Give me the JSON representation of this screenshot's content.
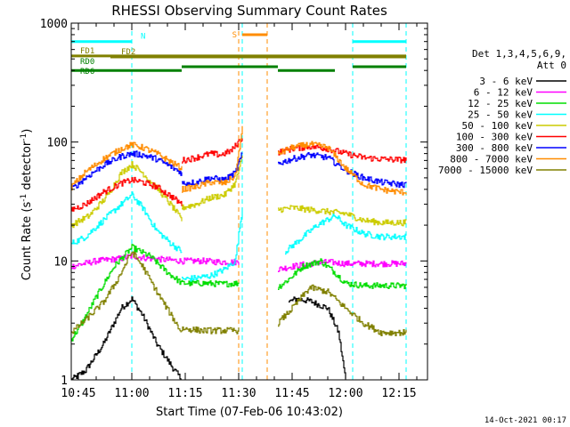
{
  "chart_data": {
    "type": "line",
    "title": "RHESSI Observing Summary Count Rates",
    "xlabel": "Start Time (07-Feb-06 10:43:02)",
    "ylabel": "Count Rate (s⁻¹ detector⁻¹)",
    "ylabel_main": "Count Rate (s",
    "ylabel_sup1": "-1",
    "ylabel_mid": " detector",
    "ylabel_sup2": "-1",
    "ylabel_end": ")",
    "yscale": "log",
    "ylim": [
      1,
      1000
    ],
    "xlim": [
      "10:43",
      "12:23"
    ],
    "y_ticks": [
      "1",
      "10",
      "100",
      "1000"
    ],
    "x_ticks": [
      "10:45",
      "11:00",
      "11:15",
      "11:30",
      "11:45",
      "12:00",
      "12:15"
    ],
    "grid": false,
    "legend": {
      "placement": "right",
      "header": [
        "Det 1,3,4,5,6,9,",
        "Att 0"
      ],
      "entries": [
        {
          "label": "3 - 6 keV",
          "color": "#000000"
        },
        {
          "label": "6 - 12 keV",
          "color": "#ff00ff"
        },
        {
          "label": "12 - 25 keV",
          "color": "#00dd00"
        },
        {
          "label": "25 - 50 keV",
          "color": "#00ffff"
        },
        {
          "label": "50 - 100 keV",
          "color": "#cccc00"
        },
        {
          "label": "100 - 300 keV",
          "color": "#ff0000"
        },
        {
          "label": "300 - 800 keV",
          "color": "#0000ff"
        },
        {
          "label": "800 - 7000 keV",
          "color": "#ff8c00"
        },
        {
          "label": "7000 - 15000 keV",
          "color": "#808000"
        }
      ]
    },
    "series": [
      {
        "name": "3 - 6 keV",
        "color": "#000000",
        "noisy": true,
        "segments": [
          {
            "x": [
              "10:43",
              "10:47",
              "10:52",
              "10:57",
              "11:00",
              "11:03",
              "11:07",
              "11:12",
              "11:14"
            ],
            "y": [
              1,
              1.2,
              2,
              4,
              4.8,
              3.5,
              2,
              1.2,
              1
            ]
          },
          {
            "x": [
              "11:44",
              "11:46",
              "11:50",
              "11:55",
              "11:58",
              "12:00"
            ],
            "y": [
              4.5,
              4.8,
              4.6,
              4,
              2.5,
              1
            ]
          }
        ]
      },
      {
        "name": "6 - 12 keV",
        "color": "#ff00ff",
        "noisy": true,
        "segments": [
          {
            "x": [
              "10:43",
              "10:50",
              "10:57",
              "11:00",
              "11:05",
              "11:14",
              "11:20",
              "11:25",
              "11:30"
            ],
            "y": [
              9,
              10,
              10.5,
              11,
              10.5,
              10,
              10,
              9.8,
              9.8
            ]
          },
          {
            "x": [
              "11:41",
              "11:45",
              "11:50",
              "11:55",
              "12:00",
              "12:05",
              "12:10",
              "12:15",
              "12:17"
            ],
            "y": [
              8.5,
              9,
              9.5,
              9.8,
              9.5,
              9.5,
              9.5,
              9.5,
              9.5
            ]
          }
        ]
      },
      {
        "name": "12 - 25 keV",
        "color": "#00dd00",
        "noisy": true,
        "segments": [
          {
            "x": [
              "10:43",
              "10:46",
              "10:50",
              "10:55",
              "11:00",
              "11:05",
              "11:10",
              "11:14",
              "11:20",
              "11:25",
              "11:30"
            ],
            "y": [
              2.2,
              3,
              5,
              9,
              13,
              11,
              8,
              6.5,
              6.5,
              6.4,
              6.5
            ]
          },
          {
            "x": [
              "11:41",
              "11:44",
              "11:48",
              "11:53",
              "11:57",
              "12:00",
              "12:05",
              "12:10",
              "12:15",
              "12:17"
            ],
            "y": [
              6,
              7,
              9,
              10,
              8,
              6.5,
              6.2,
              6.2,
              6.2,
              6.2
            ]
          }
        ]
      },
      {
        "name": "25 - 50 keV",
        "color": "#00ffff",
        "noisy": true,
        "segments": [
          {
            "x": [
              "10:43",
              "10:47",
              "10:52",
              "10:57",
              "11:00",
              "11:03",
              "11:07",
              "11:11",
              "11:14"
            ],
            "y": [
              14,
              16,
              22,
              30,
              36,
              28,
              18,
              14,
              12
            ]
          },
          {
            "x": [
              "11:14",
              "11:18",
              "11:22",
              "11:26",
              "11:29",
              "11:31"
            ],
            "y": [
              7,
              7.2,
              7.5,
              8.5,
              10,
              28
            ]
          },
          {
            "x": [
              "11:43",
              "11:47",
              "11:52",
              "11:57",
              "12:00",
              "12:05",
              "12:10",
              "12:15",
              "12:17"
            ],
            "y": [
              12,
              15,
              20,
              24,
              20,
              17,
              16,
              16,
              16
            ]
          }
        ]
      },
      {
        "name": "50 - 100 keV",
        "color": "#cccc00",
        "noisy": true,
        "segments": [
          {
            "x": [
              "10:43",
              "10:48",
              "10:53",
              "10:57",
              "11:00",
              "11:03",
              "11:08",
              "11:12",
              "11:14"
            ],
            "y": [
              20,
              24,
              35,
              55,
              65,
              55,
              38,
              27,
              22
            ]
          },
          {
            "x": [
              "11:14",
              "11:18",
              "11:22",
              "11:26",
              "11:29",
              "11:31"
            ],
            "y": [
              28,
              30,
              34,
              36,
              45,
              75
            ]
          },
          {
            "x": [
              "11:41",
              "11:45",
              "11:50",
              "11:55",
              "12:00",
              "12:05",
              "12:10",
              "12:15",
              "12:17"
            ],
            "y": [
              27,
              28,
              27,
              26,
              25,
              22,
              21,
              21,
              21
            ]
          }
        ]
      },
      {
        "name": "100 - 300 keV",
        "color": "#ff0000",
        "noisy": true,
        "segments": [
          {
            "x": [
              "10:43",
              "10:47",
              "10:52",
              "10:57",
              "11:00",
              "11:03",
              "11:07",
              "11:11",
              "11:14"
            ],
            "y": [
              27,
              30,
              38,
              45,
              48,
              46,
              42,
              35,
              30
            ]
          },
          {
            "x": [
              "11:14",
              "11:18",
              "11:22",
              "11:25",
              "11:28",
              "11:31"
            ],
            "y": [
              70,
              74,
              80,
              78,
              85,
              110
            ]
          },
          {
            "x": [
              "11:41",
              "11:45",
              "11:50",
              "11:55",
              "12:00",
              "12:05",
              "12:10",
              "12:15",
              "12:17"
            ],
            "y": [
              82,
              88,
              92,
              88,
              80,
              74,
              72,
              71,
              71
            ]
          }
        ]
      },
      {
        "name": "300 - 800 keV",
        "color": "#0000ff",
        "noisy": true,
        "segments": [
          {
            "x": [
              "10:43",
              "10:47",
              "10:52",
              "10:57",
              "11:00",
              "11:03",
              "11:07",
              "11:11",
              "11:14"
            ],
            "y": [
              40,
              50,
              64,
              76,
              80,
              78,
              72,
              62,
              55
            ]
          },
          {
            "x": [
              "11:14",
              "11:18",
              "11:22",
              "11:26",
              "11:29",
              "11:31"
            ],
            "y": [
              45,
              46,
              50,
              48,
              55,
              80
            ]
          },
          {
            "x": [
              "11:41",
              "11:45",
              "11:50",
              "11:55",
              "12:00",
              "12:05",
              "12:10",
              "12:15",
              "12:17"
            ],
            "y": [
              66,
              72,
              78,
              74,
              58,
              50,
              46,
              44,
              44
            ]
          }
        ]
      },
      {
        "name": "800 - 7000 keV",
        "color": "#ff8c00",
        "noisy": true,
        "segments": [
          {
            "x": [
              "10:43",
              "10:47",
              "10:52",
              "10:57",
              "11:00",
              "11:03",
              "11:07",
              "11:11",
              "11:14"
            ],
            "y": [
              42,
              56,
              72,
              88,
              95,
              90,
              80,
              68,
              60
            ]
          },
          {
            "x": [
              "11:14",
              "11:18",
              "11:22",
              "11:26",
              "11:29",
              "11:31"
            ],
            "y": [
              40,
              42,
              46,
              45,
              52,
              130
            ]
          },
          {
            "x": [
              "11:41",
              "11:45",
              "11:50",
              "11:55",
              "12:00",
              "12:05",
              "12:10",
              "12:15",
              "12:17"
            ],
            "y": [
              80,
              90,
              96,
              90,
              60,
              44,
              40,
              38,
              38
            ]
          }
        ]
      },
      {
        "name": "7000 - 15000 keV",
        "color": "#808000",
        "noisy": true,
        "segments": [
          {
            "x": [
              "10:43",
              "10:47",
              "10:52",
              "10:56",
              "11:00",
              "11:03",
              "11:07",
              "11:11",
              "11:14"
            ],
            "y": [
              2.5,
              3.2,
              4.5,
              7,
              12,
              9,
              5.5,
              3.5,
              2.5
            ]
          },
          {
            "x": [
              "11:14",
              "11:20",
              "11:25",
              "11:30"
            ],
            "y": [
              2.7,
              2.6,
              2.6,
              2.6
            ]
          },
          {
            "x": [
              "11:41",
              "11:45",
              "11:50",
              "11:55",
              "12:00",
              "12:05",
              "12:10",
              "12:15",
              "12:17"
            ],
            "y": [
              3,
              4,
              6,
              5.5,
              4,
              3,
              2.5,
              2.5,
              2.5
            ]
          }
        ]
      }
    ],
    "status_bars": [
      {
        "label": "N",
        "color": "#00ffff",
        "segments": [
          [
            "10:43",
            "11:00"
          ],
          [
            "12:02",
            "12:17"
          ]
        ],
        "level": 700
      },
      {
        "label": "S",
        "color": "#ff8c00",
        "segments": [
          [
            "11:31",
            "11:38"
          ]
        ],
        "level": 800
      },
      {
        "label": "FD1",
        "color": "#808000",
        "segments": [
          [
            "10:43",
            "12:17"
          ]
        ],
        "level": 530
      },
      {
        "label": "FD2",
        "color": "#808000",
        "segments": [
          [
            "10:54",
            "12:17"
          ]
        ],
        "level": 520
      },
      {
        "label": "RD0",
        "color": "#008000",
        "segments": [
          [
            "11:14",
            "11:41"
          ],
          [
            "12:02",
            "12:17"
          ]
        ],
        "level": 430
      },
      {
        "label": "RD6",
        "color": "#008000",
        "segments": [
          [
            "10:43",
            "11:14"
          ],
          [
            "11:41",
            "11:57"
          ]
        ],
        "level": 400
      }
    ],
    "vertical_markers": [
      {
        "x": "10:43",
        "color": "#00ffff"
      },
      {
        "x": "11:00",
        "color": "#00ffff"
      },
      {
        "x": "11:30",
        "color": "#ff8c00"
      },
      {
        "x": "11:31",
        "color": "#00ffff"
      },
      {
        "x": "11:38",
        "color": "#ff8c00"
      },
      {
        "x": "12:02",
        "color": "#00ffff"
      },
      {
        "x": "12:17",
        "color": "#00ffff"
      }
    ],
    "footer": "14-Oct-2021 00:17"
  }
}
